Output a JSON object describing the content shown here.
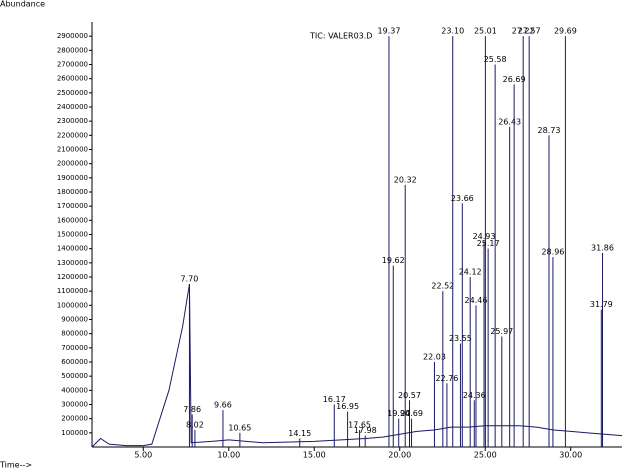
{
  "chart_data": {
    "type": "chromatogram",
    "title": "TIC: VALER03.D",
    "y_label": "Abundance",
    "x_label": "Time-->",
    "xlim": [
      2,
      33
    ],
    "ylim": [
      0,
      3000000
    ],
    "xticks": [
      {
        "value": 5,
        "label": "5.00"
      },
      {
        "value": 10,
        "label": "10.00"
      },
      {
        "value": 15,
        "label": "15.00"
      },
      {
        "value": 20,
        "label": "20.00"
      },
      {
        "value": 25,
        "label": "25.00"
      },
      {
        "value": 30,
        "label": "30.00"
      }
    ],
    "yticks": [
      100000,
      200000,
      300000,
      400000,
      500000,
      600000,
      700000,
      800000,
      900000,
      1000000,
      1100000,
      1200000,
      1300000,
      1400000,
      1500000,
      1600000,
      1700000,
      1800000,
      1900000,
      2000000,
      2100000,
      2200000,
      2300000,
      2400000,
      2500000,
      2600000,
      2700000,
      2800000,
      2900000
    ],
    "color": "#1a1a66",
    "baseline": {
      "x": [
        2,
        2.5,
        3,
        4,
        5,
        5.5,
        6.5,
        7.3,
        7.7,
        7.8,
        9,
        10,
        12,
        15,
        18,
        19,
        20,
        21,
        22,
        23,
        24,
        25,
        26,
        27,
        28,
        29,
        30,
        31,
        32,
        33
      ],
      "values": [
        0,
        60000,
        20000,
        10000,
        10000,
        20000,
        400000,
        850000,
        1150000,
        30000,
        40000,
        50000,
        30000,
        40000,
        60000,
        70000,
        90000,
        110000,
        120000,
        140000,
        140000,
        150000,
        150000,
        150000,
        140000,
        120000,
        110000,
        100000,
        90000,
        80000
      ]
    },
    "peaks": [
      {
        "x": 7.7,
        "y": 1150000,
        "label": "7.70"
      },
      {
        "x": 7.86,
        "y": 230000,
        "label": "7.86"
      },
      {
        "x": 8.02,
        "y": 120000,
        "label": "8.02"
      },
      {
        "x": 9.66,
        "y": 260000,
        "label": "9.66"
      },
      {
        "x": 10.65,
        "y": 100000,
        "label": "10.65"
      },
      {
        "x": 14.15,
        "y": 60000,
        "label": "14.15"
      },
      {
        "x": 16.17,
        "y": 300000,
        "label": "16.17"
      },
      {
        "x": 16.95,
        "y": 250000,
        "label": "16.95"
      },
      {
        "x": 17.65,
        "y": 120000,
        "label": "17.65"
      },
      {
        "x": 17.98,
        "y": 80000,
        "label": "17.98"
      },
      {
        "x": 19.37,
        "y": 2900000,
        "label": "19.37"
      },
      {
        "x": 19.62,
        "y": 1280000,
        "label": "19.62"
      },
      {
        "x": 19.94,
        "y": 200000,
        "label": "19.94"
      },
      {
        "x": 20.32,
        "y": 1850000,
        "label": "20.32"
      },
      {
        "x": 20.57,
        "y": 330000,
        "label": "20.57"
      },
      {
        "x": 20.69,
        "y": 200000,
        "label": "20.69"
      },
      {
        "x": 22.03,
        "y": 600000,
        "label": "22.03"
      },
      {
        "x": 22.52,
        "y": 1100000,
        "label": "22.52"
      },
      {
        "x": 22.76,
        "y": 450000,
        "label": "22.76"
      },
      {
        "x": 23.1,
        "y": 2900000,
        "label": "23.10"
      },
      {
        "x": 23.66,
        "y": 1720000,
        "label": "23.66"
      },
      {
        "x": 23.55,
        "y": 730000,
        "label": "23.55"
      },
      {
        "x": 24.12,
        "y": 1200000,
        "label": "24.12"
      },
      {
        "x": 24.36,
        "y": 330000,
        "label": "24.36"
      },
      {
        "x": 24.46,
        "y": 1000000,
        "label": "24.46"
      },
      {
        "x": 24.93,
        "y": 1450000,
        "label": "24.93"
      },
      {
        "x": 25.01,
        "y": 2900000,
        "label": "25.01"
      },
      {
        "x": 25.17,
        "y": 1400000,
        "label": "25.17"
      },
      {
        "x": 25.58,
        "y": 2700000,
        "label": "25.58"
      },
      {
        "x": 25.97,
        "y": 780000,
        "label": "25.97"
      },
      {
        "x": 26.43,
        "y": 2260000,
        "label": "26.43"
      },
      {
        "x": 26.69,
        "y": 2560000,
        "label": "26.69"
      },
      {
        "x": 27.22,
        "y": 2900000,
        "label": "27.22"
      },
      {
        "x": 27.57,
        "y": 2900000,
        "label": "27.57"
      },
      {
        "x": 28.73,
        "y": 2200000,
        "label": "28.73"
      },
      {
        "x": 28.96,
        "y": 1340000,
        "label": "28.96"
      },
      {
        "x": 29.69,
        "y": 2900000,
        "label": "29.69"
      },
      {
        "x": 31.79,
        "y": 970000,
        "label": "31.79"
      },
      {
        "x": 31.86,
        "y": 1370000,
        "label": "31.86"
      }
    ]
  }
}
